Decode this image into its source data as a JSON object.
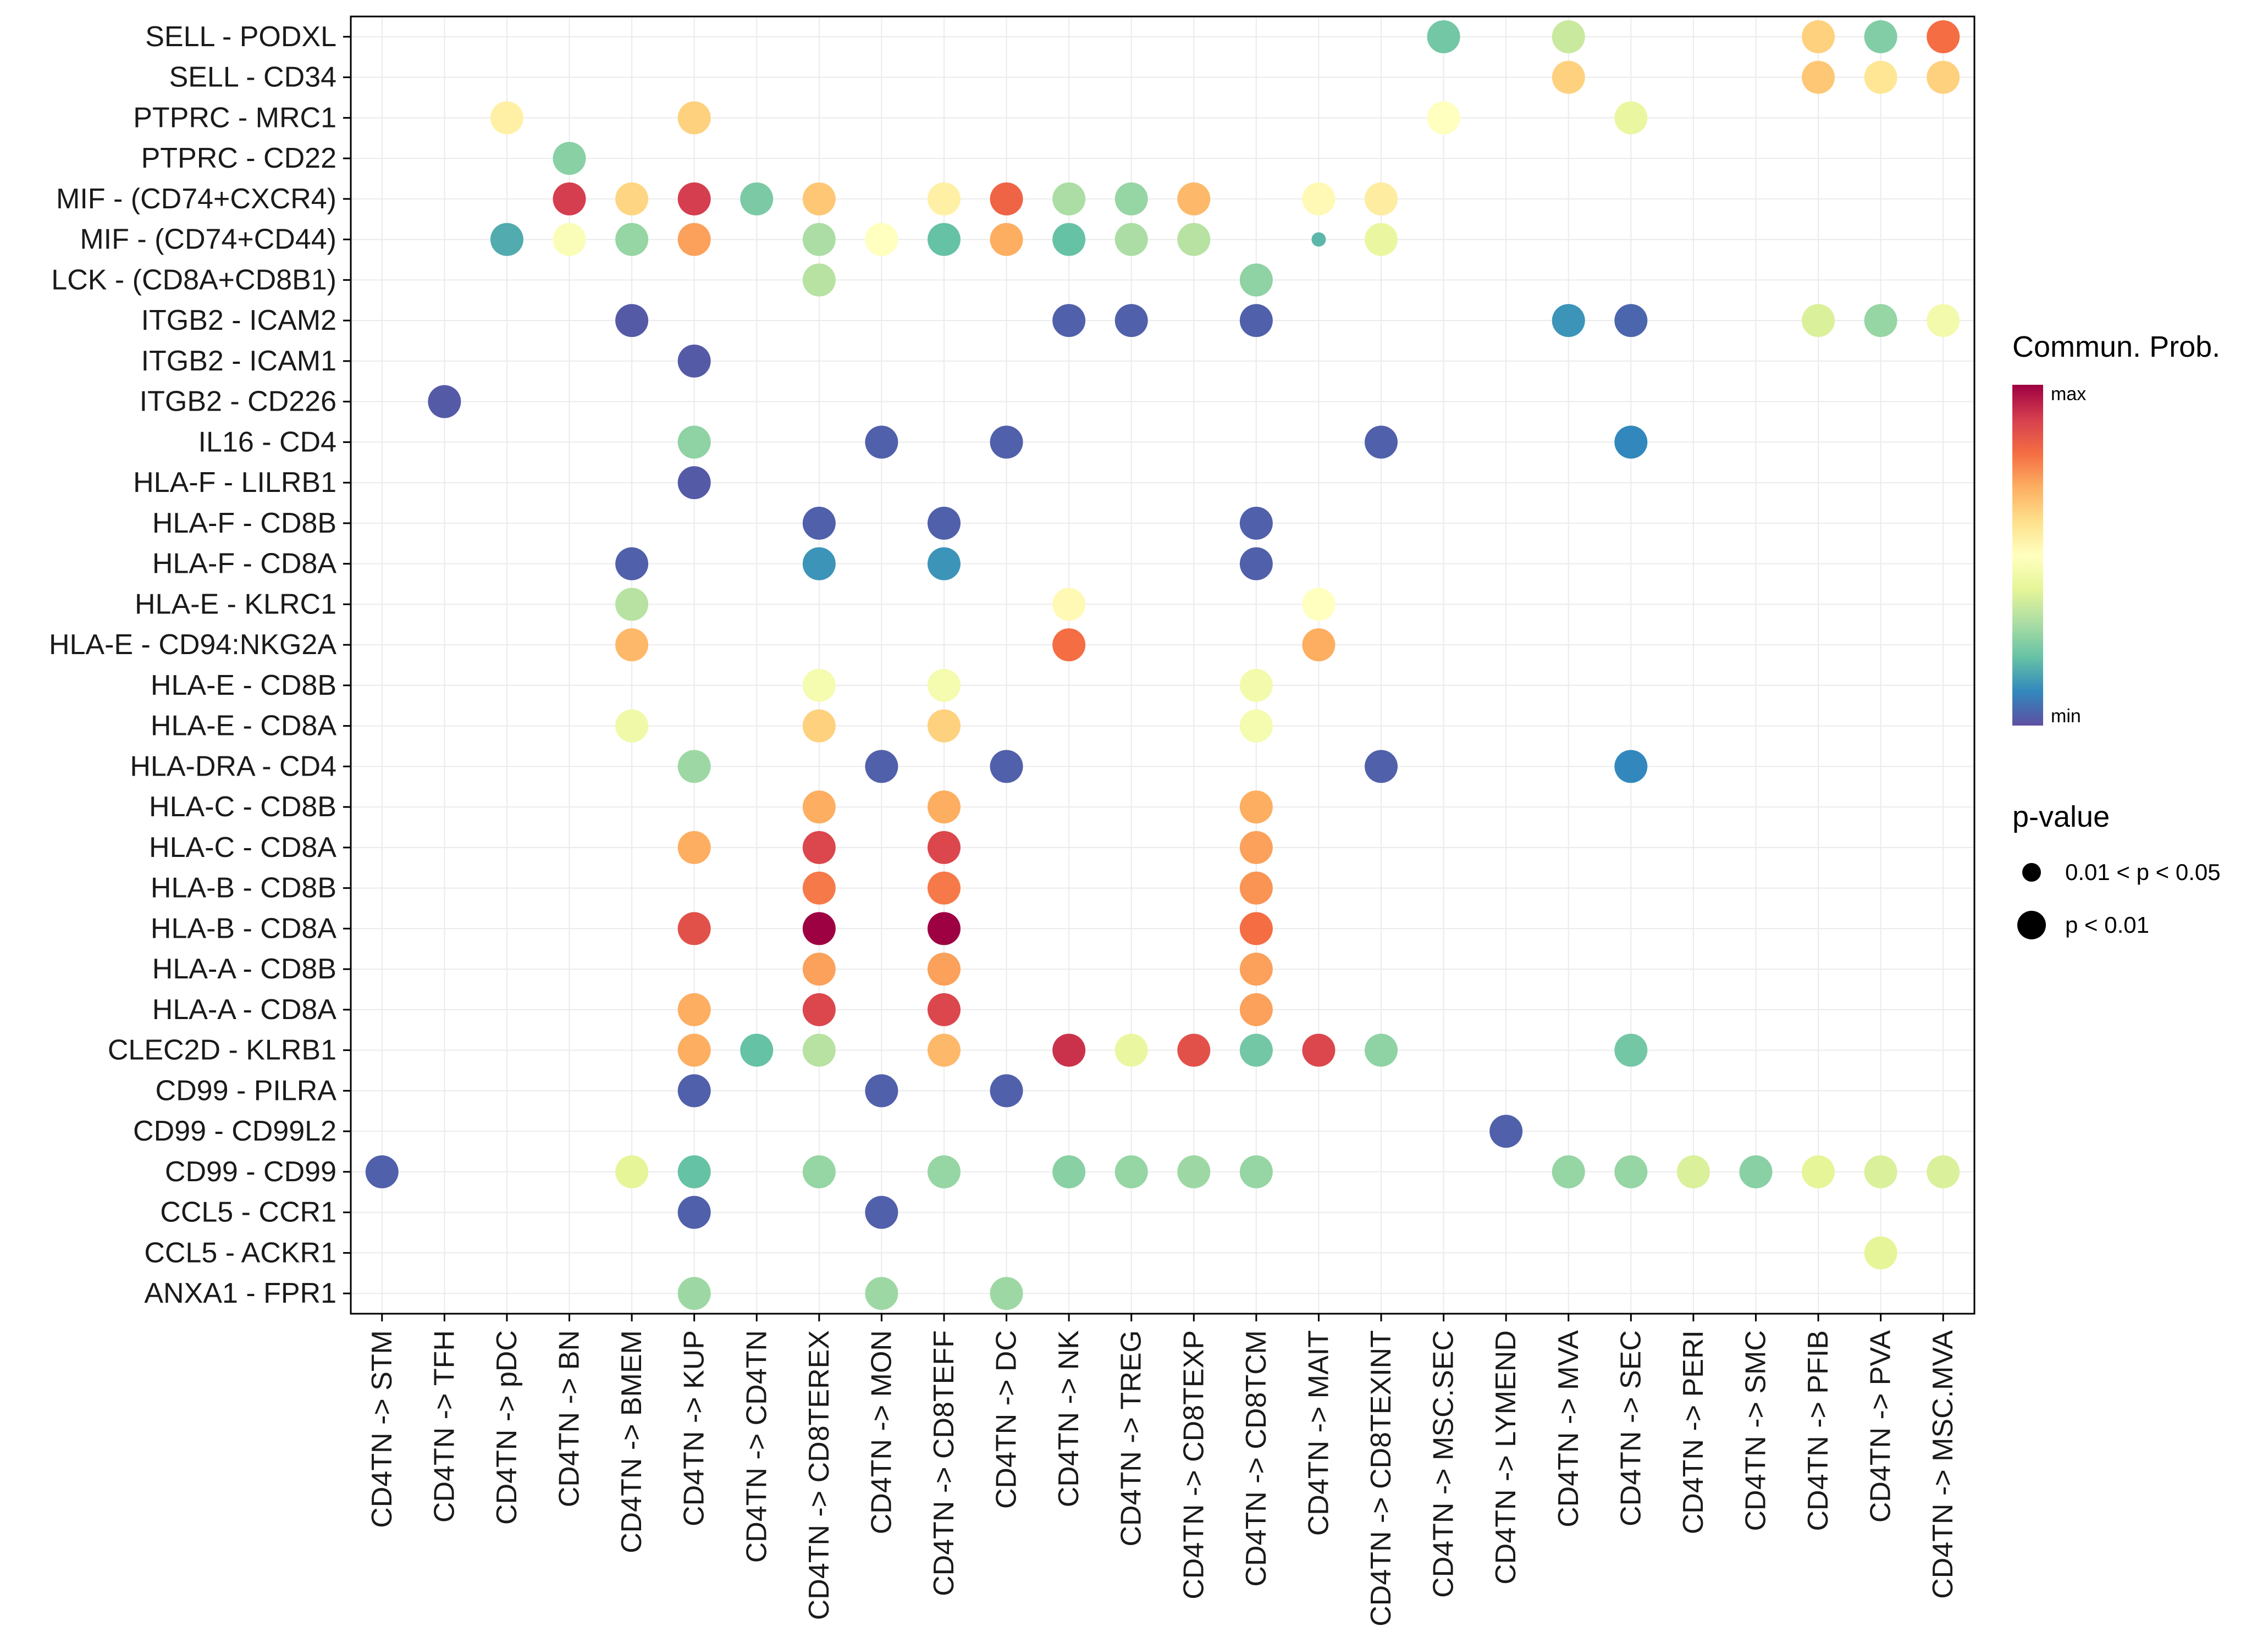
{
  "figure": {
    "background": "#FFFFFF"
  },
  "chart_data": {
    "type": "scatter",
    "subtype": "bubble-dotplot (cell-cell communication)",
    "title": "",
    "xlabel": "",
    "ylabel": "",
    "grid": true,
    "gridline_color": "#EBEBEB",
    "panel_border_color": "#000000",
    "x_tick_labels": [
      "CD4TN -> STM",
      "CD4TN -> TFH",
      "CD4TN -> pDC",
      "CD4TN -> BN",
      "CD4TN -> BMEM",
      "CD4TN -> KUP",
      "CD4TN -> CD4TN",
      "CD4TN -> CD8TEREX",
      "CD4TN -> MON",
      "CD4TN -> CD8TEFF",
      "CD4TN -> DC",
      "CD4TN -> NK",
      "CD4TN -> TREG",
      "CD4TN -> CD8TEXP",
      "CD4TN -> CD8TCM",
      "CD4TN -> MAIT",
      "CD4TN -> CD8TEXINT",
      "CD4TN -> MSC.SEC",
      "CD4TN -> LYMEND",
      "CD4TN -> MVA",
      "CD4TN -> SEC",
      "CD4TN -> PERI",
      "CD4TN -> SMC",
      "CD4TN -> PFIB",
      "CD4TN -> PVA",
      "CD4TN -> MSC.MVA"
    ],
    "y_tick_labels": [
      "SELL - PODXL",
      "SELL - CD34",
      "PTPRC - MRC1",
      "PTPRC - CD22",
      "MIF - (CD74+CXCR4)",
      "MIF - (CD74+CD44)",
      "LCK - (CD8A+CD8B1)",
      "ITGB2 - ICAM2",
      "ITGB2 - ICAM1",
      "ITGB2 - CD226",
      "IL16 - CD4",
      "HLA-F - LILRB1",
      "HLA-F - CD8B",
      "HLA-F - CD8A",
      "HLA-E - KLRC1",
      "HLA-E - CD94:NKG2A",
      "HLA-E - CD8B",
      "HLA-E - CD8A",
      "HLA-DRA - CD4",
      "HLA-C - CD8B",
      "HLA-C - CD8A",
      "HLA-B - CD8B",
      "HLA-B - CD8A",
      "HLA-A - CD8B",
      "HLA-A - CD8A",
      "CLEC2D - KLRB1",
      "CD99 - PILRA",
      "CD99 - CD99L2",
      "CD99 - CD99",
      "CCL5 - CCR1",
      "CCL5 - ACKR1",
      "ANXA1 - FPR1"
    ],
    "palette_min_to_max": [
      "#5E4FA2",
      "#3288BD",
      "#66C2A5",
      "#ABDDA4",
      "#E6F598",
      "#FFFFBF",
      "#FEE08B",
      "#FDAE61",
      "#F46D43",
      "#D53E4F",
      "#9E0142"
    ],
    "dot_format": [
      "y_index_from_top",
      "x_index",
      "commun_prob_normalized_0to1",
      "pvalue_class: 2 = p<0.01 (large), 1 = 0.01<p<0.05 (small)"
    ],
    "dots": [
      [
        0,
        17,
        0.22,
        2
      ],
      [
        0,
        19,
        0.35,
        2
      ],
      [
        0,
        23,
        0.63,
        2
      ],
      [
        0,
        24,
        0.24,
        2
      ],
      [
        0,
        25,
        0.8,
        2
      ],
      [
        1,
        19,
        0.63,
        2
      ],
      [
        1,
        23,
        0.65,
        2
      ],
      [
        1,
        24,
        0.58,
        2
      ],
      [
        1,
        25,
        0.63,
        2
      ],
      [
        2,
        2,
        0.55,
        2
      ],
      [
        2,
        5,
        0.63,
        2
      ],
      [
        2,
        17,
        0.5,
        2
      ],
      [
        2,
        20,
        0.42,
        2
      ],
      [
        3,
        3,
        0.25,
        2
      ],
      [
        4,
        3,
        0.9,
        2
      ],
      [
        4,
        4,
        0.62,
        2
      ],
      [
        4,
        5,
        0.9,
        2
      ],
      [
        4,
        6,
        0.23,
        2
      ],
      [
        4,
        7,
        0.65,
        2
      ],
      [
        4,
        9,
        0.55,
        2
      ],
      [
        4,
        10,
        0.82,
        2
      ],
      [
        4,
        11,
        0.3,
        2
      ],
      [
        4,
        12,
        0.27,
        2
      ],
      [
        4,
        13,
        0.68,
        2
      ],
      [
        4,
        15,
        0.52,
        2
      ],
      [
        4,
        16,
        0.56,
        2
      ],
      [
        5,
        2,
        0.16,
        2
      ],
      [
        5,
        3,
        0.48,
        2
      ],
      [
        5,
        4,
        0.27,
        2
      ],
      [
        5,
        5,
        0.72,
        2
      ],
      [
        5,
        7,
        0.3,
        2
      ],
      [
        5,
        8,
        0.5,
        2
      ],
      [
        5,
        9,
        0.2,
        2
      ],
      [
        5,
        10,
        0.7,
        2
      ],
      [
        5,
        11,
        0.2,
        2
      ],
      [
        5,
        12,
        0.3,
        2
      ],
      [
        5,
        13,
        0.32,
        2
      ],
      [
        5,
        15,
        0.18,
        1
      ],
      [
        5,
        16,
        0.42,
        2
      ],
      [
        6,
        7,
        0.32,
        2
      ],
      [
        6,
        14,
        0.26,
        2
      ],
      [
        7,
        4,
        0.02,
        2
      ],
      [
        7,
        11,
        0.03,
        2
      ],
      [
        7,
        12,
        0.03,
        2
      ],
      [
        7,
        14,
        0.03,
        2
      ],
      [
        7,
        19,
        0.12,
        2
      ],
      [
        7,
        20,
        0.04,
        2
      ],
      [
        7,
        23,
        0.38,
        2
      ],
      [
        7,
        24,
        0.27,
        2
      ],
      [
        7,
        25,
        0.45,
        2
      ],
      [
        8,
        5,
        0.02,
        2
      ],
      [
        9,
        1,
        0.02,
        2
      ],
      [
        10,
        5,
        0.26,
        2
      ],
      [
        10,
        8,
        0.03,
        2
      ],
      [
        10,
        10,
        0.03,
        2
      ],
      [
        10,
        16,
        0.03,
        2
      ],
      [
        10,
        20,
        0.1,
        2
      ],
      [
        11,
        5,
        0.02,
        2
      ],
      [
        12,
        7,
        0.03,
        2
      ],
      [
        12,
        9,
        0.03,
        2
      ],
      [
        12,
        14,
        0.03,
        2
      ],
      [
        13,
        4,
        0.03,
        2
      ],
      [
        13,
        7,
        0.12,
        2
      ],
      [
        13,
        9,
        0.12,
        2
      ],
      [
        13,
        14,
        0.03,
        2
      ],
      [
        14,
        4,
        0.32,
        2
      ],
      [
        14,
        11,
        0.52,
        2
      ],
      [
        14,
        15,
        0.5,
        2
      ],
      [
        15,
        4,
        0.68,
        2
      ],
      [
        15,
        11,
        0.8,
        2
      ],
      [
        15,
        15,
        0.7,
        2
      ],
      [
        16,
        7,
        0.46,
        2
      ],
      [
        16,
        9,
        0.46,
        2
      ],
      [
        16,
        14,
        0.45,
        2
      ],
      [
        17,
        4,
        0.44,
        2
      ],
      [
        17,
        7,
        0.63,
        2
      ],
      [
        17,
        9,
        0.63,
        2
      ],
      [
        17,
        14,
        0.46,
        2
      ],
      [
        18,
        5,
        0.28,
        2
      ],
      [
        18,
        8,
        0.03,
        2
      ],
      [
        18,
        10,
        0.03,
        2
      ],
      [
        18,
        16,
        0.03,
        2
      ],
      [
        18,
        20,
        0.1,
        2
      ],
      [
        19,
        7,
        0.7,
        2
      ],
      [
        19,
        9,
        0.7,
        2
      ],
      [
        19,
        14,
        0.7,
        2
      ],
      [
        20,
        5,
        0.7,
        2
      ],
      [
        20,
        7,
        0.88,
        2
      ],
      [
        20,
        9,
        0.88,
        2
      ],
      [
        20,
        14,
        0.72,
        2
      ],
      [
        21,
        7,
        0.78,
        2
      ],
      [
        21,
        9,
        0.78,
        2
      ],
      [
        21,
        14,
        0.74,
        2
      ],
      [
        22,
        5,
        0.86,
        2
      ],
      [
        22,
        7,
        1.0,
        2
      ],
      [
        22,
        9,
        1.0,
        2
      ],
      [
        22,
        14,
        0.8,
        2
      ],
      [
        23,
        7,
        0.72,
        2
      ],
      [
        23,
        9,
        0.72,
        2
      ],
      [
        23,
        14,
        0.72,
        2
      ],
      [
        24,
        5,
        0.7,
        2
      ],
      [
        24,
        7,
        0.88,
        2
      ],
      [
        24,
        9,
        0.88,
        2
      ],
      [
        24,
        14,
        0.72,
        2
      ],
      [
        25,
        5,
        0.7,
        2
      ],
      [
        25,
        6,
        0.2,
        2
      ],
      [
        25,
        7,
        0.32,
        2
      ],
      [
        25,
        9,
        0.68,
        2
      ],
      [
        25,
        11,
        0.92,
        2
      ],
      [
        25,
        12,
        0.42,
        2
      ],
      [
        25,
        13,
        0.86,
        2
      ],
      [
        25,
        14,
        0.22,
        2
      ],
      [
        25,
        15,
        0.88,
        2
      ],
      [
        25,
        16,
        0.26,
        2
      ],
      [
        25,
        20,
        0.22,
        2
      ],
      [
        26,
        5,
        0.03,
        2
      ],
      [
        26,
        8,
        0.03,
        2
      ],
      [
        26,
        10,
        0.03,
        2
      ],
      [
        27,
        18,
        0.03,
        2
      ],
      [
        28,
        0,
        0.03,
        2
      ],
      [
        28,
        4,
        0.4,
        2
      ],
      [
        28,
        5,
        0.2,
        2
      ],
      [
        28,
        7,
        0.27,
        2
      ],
      [
        28,
        9,
        0.27,
        2
      ],
      [
        28,
        11,
        0.25,
        2
      ],
      [
        28,
        12,
        0.27,
        2
      ],
      [
        28,
        13,
        0.28,
        2
      ],
      [
        28,
        14,
        0.27,
        2
      ],
      [
        28,
        19,
        0.27,
        2
      ],
      [
        28,
        20,
        0.27,
        2
      ],
      [
        28,
        21,
        0.38,
        2
      ],
      [
        28,
        22,
        0.25,
        2
      ],
      [
        28,
        23,
        0.4,
        2
      ],
      [
        28,
        24,
        0.38,
        2
      ],
      [
        28,
        25,
        0.38,
        2
      ],
      [
        29,
        5,
        0.03,
        2
      ],
      [
        29,
        8,
        0.03,
        2
      ],
      [
        30,
        24,
        0.4,
        2
      ],
      [
        31,
        5,
        0.28,
        2
      ],
      [
        31,
        8,
        0.28,
        2
      ],
      [
        31,
        10,
        0.28,
        2
      ]
    ]
  },
  "legend": {
    "commun_prob": {
      "title": "Commun. Prob.",
      "max_label": "max",
      "min_label": "min"
    },
    "p_value": {
      "title": "p-value",
      "items": [
        {
          "label": "0.01 < p < 0.05",
          "size": "small"
        },
        {
          "label": "p < 0.01",
          "size": "large"
        }
      ]
    }
  }
}
